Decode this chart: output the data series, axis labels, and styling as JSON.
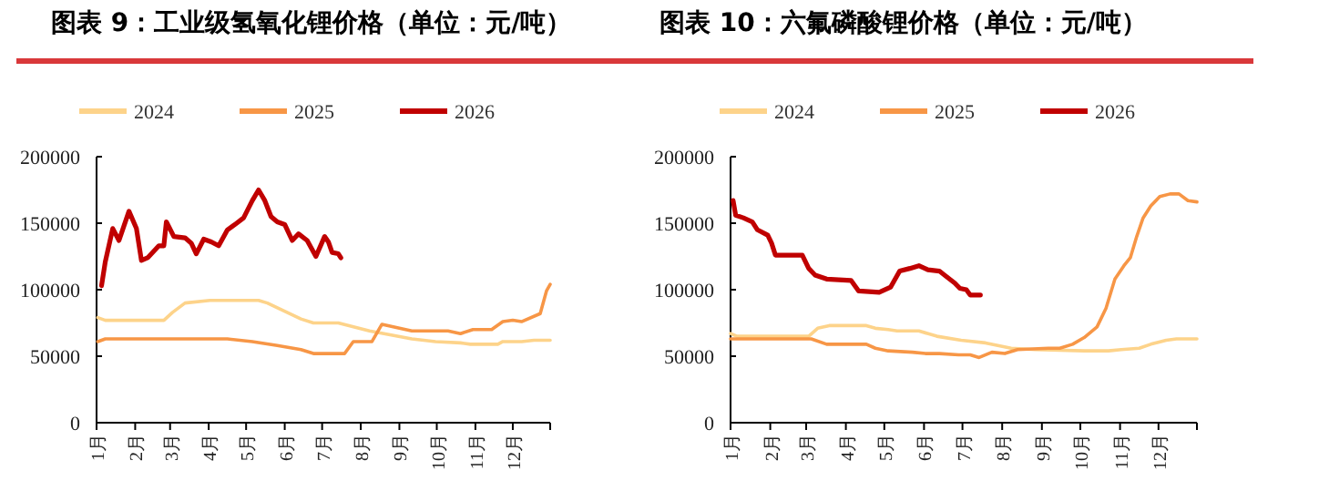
{
  "chart_data": [
    {
      "type": "line",
      "title": "图表 9：工业级氢氧化锂价格（单位：元/吨）",
      "legend": "top",
      "xlim": [
        "--01-01",
        "--12-31"
      ],
      "ylim": [
        0,
        200000
      ],
      "yticks": [
        0,
        50000,
        100000,
        150000,
        200000
      ],
      "xticks": [
        {
          "value": "--01-01",
          "label": "1月"
        },
        {
          "value": "--02-01",
          "label": "2月"
        },
        {
          "value": "--03-01",
          "label": "3月"
        },
        {
          "value": "--04-01",
          "label": "4月"
        },
        {
          "value": "--05-01",
          "label": "5月"
        },
        {
          "value": "--06-01",
          "label": "6月"
        },
        {
          "value": "--07-01",
          "label": "7月"
        },
        {
          "value": "--08-01",
          "label": "8月"
        },
        {
          "value": "--09-01",
          "label": "9月"
        },
        {
          "value": "--10-01",
          "label": "10月"
        },
        {
          "value": "--11-01",
          "label": "11月"
        },
        {
          "value": "--12-01",
          "label": "12月"
        },
        {
          "value": "--12-31",
          "label": null
        }
      ],
      "series": [
        {
          "name": "2024",
          "color": "#fdd38a",
          "x": [
            "--01-02",
            "--01-08",
            "--02-24",
            "--03-03",
            "--03-13",
            "--04-02",
            "--05-11",
            "--05-18",
            "--06-14",
            "--06-24",
            "--07-14",
            "--08-08",
            "--09-11",
            "--09-30",
            "--10-20",
            "--10-28",
            "--11-19",
            "--11-23",
            "--12-08",
            "--12-18",
            "--12-31"
          ],
          "values": [
            79000,
            77000,
            77000,
            83000,
            90000,
            92000,
            92000,
            90000,
            78000,
            75000,
            75000,
            69000,
            63000,
            61000,
            60000,
            59000,
            59000,
            61000,
            61000,
            62000,
            62000
          ]
        },
        {
          "name": "2025",
          "color": "#f79646",
          "x": [
            "--01-02",
            "--01-08",
            "--04-16",
            "--05-06",
            "--05-26",
            "--06-14",
            "--06-24",
            "--07-19",
            "--07-26",
            "--08-10",
            "--08-18",
            "--09-01",
            "--09-11",
            "--10-10",
            "--10-20",
            "--10-30",
            "--11-14",
            "--11-23",
            "--12-01",
            "--12-08",
            "--12-23",
            "--12-28",
            "--12-31"
          ],
          "values": [
            61000,
            63000,
            63000,
            61000,
            58000,
            55000,
            52000,
            52000,
            61000,
            61000,
            74000,
            71000,
            69000,
            69000,
            67000,
            70000,
            70000,
            76000,
            77000,
            76000,
            82000,
            99000,
            104000
          ]
        },
        {
          "name": "2026",
          "color": "#c00000",
          "x": [
            "--01-05",
            "--01-08",
            "--01-14",
            "--01-19",
            "--01-27",
            "--02-02",
            "--02-06",
            "--02-11",
            "--02-20",
            "--02-24",
            "--02-26",
            "--03-04",
            "--03-13",
            "--03-18",
            "--03-22",
            "--03-28",
            "--04-03",
            "--04-09",
            "--04-16",
            "--04-22",
            "--04-29",
            "--05-06",
            "--05-11",
            "--05-16",
            "--05-21",
            "--05-26",
            "--06-01",
            "--06-07",
            "--06-12",
            "--06-19",
            "--06-26",
            "--07-03",
            "--07-06",
            "--07-09",
            "--07-14",
            "--07-16"
          ],
          "values": [
            103000,
            121000,
            146000,
            137000,
            159000,
            146000,
            122000,
            124000,
            133000,
            133000,
            151000,
            140000,
            139000,
            135000,
            127000,
            138000,
            136000,
            133000,
            145000,
            149000,
            154000,
            167000,
            175000,
            167000,
            155000,
            151000,
            149000,
            137000,
            142000,
            137000,
            125000,
            140000,
            136000,
            128000,
            127000,
            124000
          ]
        }
      ]
    },
    {
      "type": "line",
      "title": "图表 10：六氟磷酸锂价格（单位：元/吨）",
      "legend": "top",
      "xlim": [
        "--01-01",
        "--12-31"
      ],
      "ylim": [
        0,
        200000
      ],
      "yticks": [
        0,
        50000,
        100000,
        150000,
        200000
      ],
      "xticks": [
        {
          "value": "--01-01",
          "label": "1月"
        },
        {
          "value": "--02-01",
          "label": "2月"
        },
        {
          "value": "--03-01",
          "label": "3月"
        },
        {
          "value": "--04-01",
          "label": "4月"
        },
        {
          "value": "--05-01",
          "label": "5月"
        },
        {
          "value": "--06-01",
          "label": "6月"
        },
        {
          "value": "--07-01",
          "label": "7月"
        },
        {
          "value": "--08-01",
          "label": "8月"
        },
        {
          "value": "--09-01",
          "label": "9月"
        },
        {
          "value": "--10-01",
          "label": "10月"
        },
        {
          "value": "--11-01",
          "label": "11月"
        },
        {
          "value": "--12-01",
          "label": "12月"
        },
        {
          "value": "--12-31",
          "label": null
        }
      ],
      "series": [
        {
          "name": "2024",
          "color": "#fdd38a",
          "x": [
            "--01-01",
            "--01-06",
            "--03-03",
            "--03-10",
            "--03-19",
            "--04-17",
            "--04-24",
            "--05-04",
            "--05-11",
            "--05-28",
            "--06-11",
            "--06-30",
            "--07-19",
            "--08-08",
            "--08-27",
            "--10-04",
            "--10-23",
            "--11-02",
            "--11-16",
            "--11-25",
            "--12-07",
            "--12-15",
            "--12-31"
          ],
          "values": [
            67000,
            65000,
            65000,
            71000,
            73000,
            73000,
            71000,
            70000,
            69000,
            69000,
            65000,
            62000,
            60000,
            56000,
            55000,
            54000,
            54000,
            55000,
            56000,
            59000,
            62000,
            63000,
            63000
          ]
        },
        {
          "name": "2025",
          "color": "#f79646",
          "x": [
            "--01-01",
            "--03-05",
            "--03-17",
            "--04-17",
            "--04-24",
            "--05-04",
            "--05-23",
            "--06-02",
            "--06-13",
            "--06-28",
            "--07-07",
            "--07-14",
            "--07-24",
            "--08-03",
            "--08-13",
            "--09-06",
            "--09-15",
            "--09-25",
            "--10-04",
            "--10-14",
            "--10-21",
            "--10-28",
            "--11-04",
            "--11-09",
            "--11-14",
            "--11-19",
            "--11-25",
            "--12-02",
            "--12-10",
            "--12-17",
            "--12-24",
            "--12-31"
          ],
          "values": [
            63000,
            63000,
            59000,
            59000,
            56000,
            54000,
            53000,
            52000,
            52000,
            51000,
            51000,
            49000,
            53000,
            52000,
            55000,
            56000,
            56000,
            59000,
            64000,
            72000,
            86000,
            108000,
            118000,
            124000,
            140000,
            154000,
            163000,
            170000,
            172000,
            172000,
            167000,
            166000
          ]
        },
        {
          "name": "2026",
          "color": "#c00000",
          "x": [
            "--01-03",
            "--01-05",
            "--01-11",
            "--01-18",
            "--01-22",
            "--01-30",
            "--02-02",
            "--02-05",
            "--02-26",
            "--03-03",
            "--03-08",
            "--03-17",
            "--04-05",
            "--04-11",
            "--04-27",
            "--05-06",
            "--05-13",
            "--05-21",
            "--05-28",
            "--06-04",
            "--06-13",
            "--06-17",
            "--06-25",
            "--06-29",
            "--07-04",
            "--07-07",
            "--07-15"
          ],
          "values": [
            167000,
            156000,
            154000,
            151000,
            145000,
            141000,
            135000,
            126000,
            126000,
            116000,
            111000,
            108000,
            107000,
            99000,
            98000,
            102000,
            114000,
            116000,
            118000,
            115000,
            114000,
            111000,
            105000,
            101000,
            100000,
            96000,
            96000
          ]
        }
      ]
    }
  ]
}
